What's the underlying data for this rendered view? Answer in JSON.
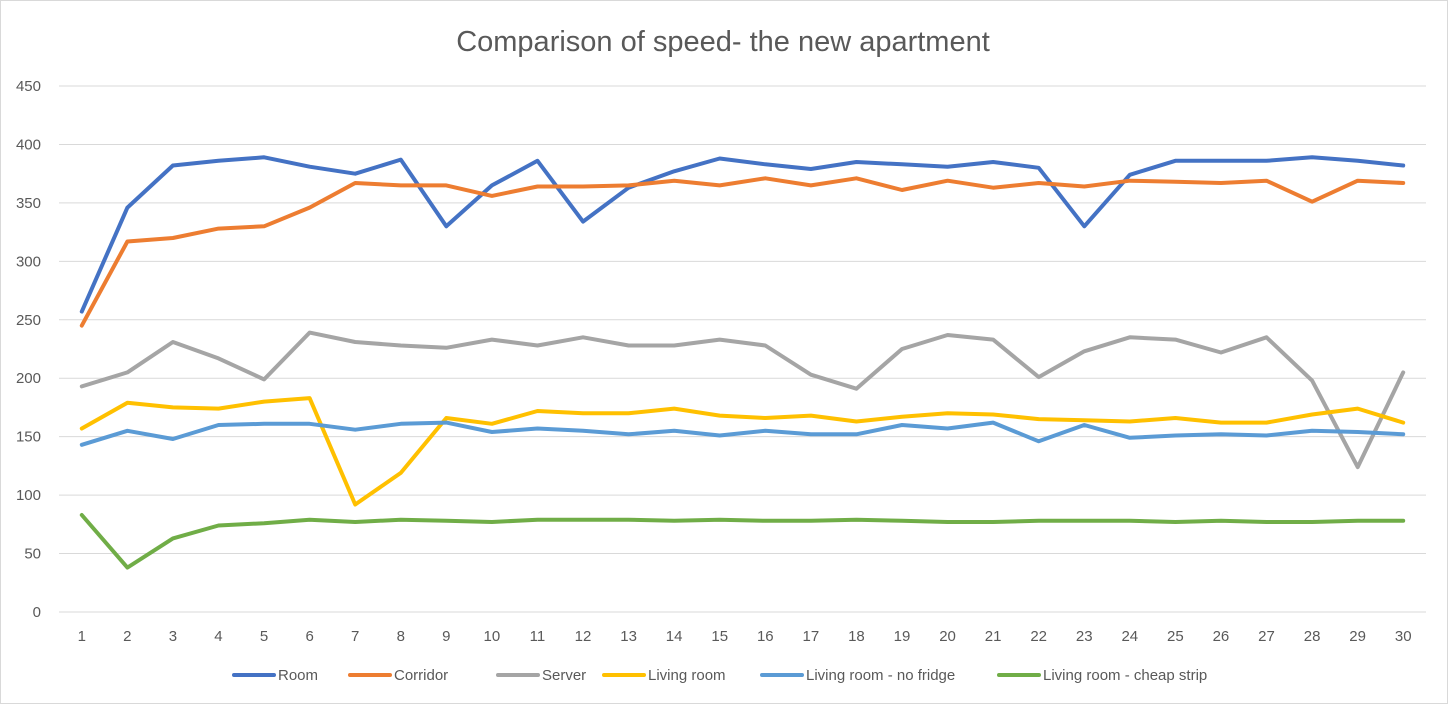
{
  "chart_data": {
    "type": "line",
    "title": "Comparison of speed- the new apartment",
    "xlabel": "",
    "ylabel": "",
    "ylim": [
      0,
      450
    ],
    "yticks": [
      0,
      50,
      100,
      150,
      200,
      250,
      300,
      350,
      400,
      450
    ],
    "categories": [
      "1",
      "2",
      "3",
      "4",
      "5",
      "6",
      "7",
      "8",
      "9",
      "10",
      "11",
      "12",
      "13",
      "14",
      "15",
      "16",
      "17",
      "18",
      "19",
      "20",
      "21",
      "22",
      "23",
      "24",
      "25",
      "26",
      "27",
      "28",
      "29",
      "30"
    ],
    "grid": "horizontal",
    "legend_position": "bottom",
    "series": [
      {
        "name": "Room",
        "color": "#4472C4",
        "values": [
          257,
          346,
          382,
          386,
          389,
          381,
          375,
          387,
          330,
          365,
          386,
          334,
          363,
          377,
          388,
          383,
          379,
          385,
          383,
          381,
          385,
          380,
          330,
          374,
          386,
          386,
          386,
          389,
          386,
          382
        ]
      },
      {
        "name": "Corridor",
        "color": "#ED7D31",
        "values": [
          245,
          317,
          320,
          328,
          330,
          346,
          367,
          365,
          365,
          356,
          364,
          364,
          365,
          369,
          365,
          371,
          365,
          371,
          361,
          369,
          363,
          367,
          364,
          369,
          368,
          367,
          369,
          351,
          369,
          367
        ]
      },
      {
        "name": "Server",
        "color": "#A5A5A5",
        "values": [
          193,
          205,
          231,
          217,
          199,
          239,
          231,
          228,
          226,
          233,
          228,
          235,
          228,
          228,
          233,
          228,
          203,
          191,
          225,
          237,
          233,
          201,
          223,
          235,
          233,
          222,
          235,
          198,
          124,
          205
        ]
      },
      {
        "name": "Living room",
        "color": "#FFC000",
        "values": [
          157,
          179,
          175,
          174,
          180,
          183,
          92,
          119,
          166,
          161,
          172,
          170,
          170,
          174,
          168,
          166,
          168,
          163,
          167,
          170,
          169,
          165,
          164,
          163,
          166,
          162,
          162,
          169,
          174,
          162
        ]
      },
      {
        "name": "Living room - no fridge",
        "color": "#5B9BD5",
        "values": [
          143,
          155,
          148,
          160,
          161,
          161,
          156,
          161,
          162,
          154,
          157,
          155,
          152,
          155,
          151,
          155,
          152,
          152,
          160,
          157,
          162,
          146,
          160,
          149,
          151,
          152,
          151,
          155,
          154,
          152
        ]
      },
      {
        "name": "Living room - cheap strip",
        "color": "#70AD47",
        "values": [
          83,
          38,
          63,
          74,
          76,
          79,
          77,
          79,
          78,
          77,
          79,
          79,
          79,
          78,
          79,
          78,
          78,
          79,
          78,
          77,
          77,
          78,
          78,
          78,
          77,
          78,
          77,
          77,
          78,
          78
        ]
      }
    ]
  }
}
